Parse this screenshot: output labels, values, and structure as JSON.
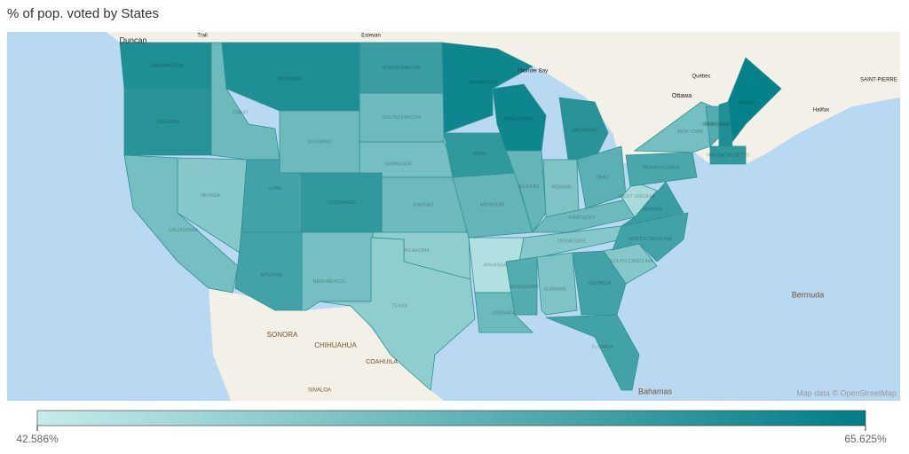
{
  "title": "% of pop. voted by States",
  "map": {
    "regions": [
      {
        "name": "WASHINGTON",
        "value": 62
      },
      {
        "name": "OREGON",
        "value": 61
      },
      {
        "name": "CALIFORNIA",
        "value": 52
      },
      {
        "name": "NEVADA",
        "value": 50
      },
      {
        "name": "IDAHO",
        "value": 53
      },
      {
        "name": "MONTANA",
        "value": 62
      },
      {
        "name": "WYOMING",
        "value": 53
      },
      {
        "name": "UTAH",
        "value": 58
      },
      {
        "name": "COLORADO",
        "value": 60
      },
      {
        "name": "ARIZONA",
        "value": 58
      },
      {
        "name": "NEW MEXICO",
        "value": 52
      },
      {
        "name": "NORTH DAKOTA",
        "value": 59
      },
      {
        "name": "SOUTH DAKOTA",
        "value": 53
      },
      {
        "name": "NEBRASKA",
        "value": 52
      },
      {
        "name": "KANSAS",
        "value": 53
      },
      {
        "name": "OKLAHOMA",
        "value": 49
      },
      {
        "name": "TEXAS",
        "value": 49
      },
      {
        "name": "MINNESOTA",
        "value": 64
      },
      {
        "name": "IOWA",
        "value": 60
      },
      {
        "name": "MISSOURI",
        "value": 54
      },
      {
        "name": "ARKANSAS",
        "value": 45
      },
      {
        "name": "LOUISIANA",
        "value": 53
      },
      {
        "name": "WISCONSIN",
        "value": 64
      },
      {
        "name": "ILLINOIS",
        "value": 54
      },
      {
        "name": "MICHIGAN",
        "value": 61
      },
      {
        "name": "INDIANA",
        "value": 51
      },
      {
        "name": "OHIO",
        "value": 55
      },
      {
        "name": "KENTUCKY",
        "value": 53
      },
      {
        "name": "TENNESSEE",
        "value": 50
      },
      {
        "name": "MISSISSIPPI",
        "value": 56
      },
      {
        "name": "ALABAMA",
        "value": 51
      },
      {
        "name": "GEORGIA",
        "value": 58
      },
      {
        "name": "FLORIDA",
        "value": 58
      },
      {
        "name": "SOUTH CAROLINA",
        "value": 50
      },
      {
        "name": "NORTH CAROLINA",
        "value": 58
      },
      {
        "name": "VIRGINIA",
        "value": 59
      },
      {
        "name": "WEST VIRGINIA",
        "value": 46
      },
      {
        "name": "PENNSYLVANIA",
        "value": 57
      },
      {
        "name": "NEW YORK",
        "value": 52
      },
      {
        "name": "VERMONT",
        "value": 56
      },
      {
        "name": "NEW HAMPSHIRE",
        "value": 62
      },
      {
        "name": "MAINE",
        "value": 65
      },
      {
        "name": "MASSACHUSETTS",
        "value": 60
      }
    ],
    "places": [
      "Duncan",
      "Trail",
      "Estevan",
      "Thunder Bay",
      "Ottawa",
      "Québec",
      "Halifax",
      "SAINT-PIERRE",
      "Bermuda",
      "Bahamas",
      "SONORA",
      "CHIHUAHUA",
      "COAHUILA",
      "SINALOA"
    ],
    "attribution": "Map data © OpenStreetMap"
  },
  "legend": {
    "min": {
      "value": 42.586,
      "label": "42.586%"
    },
    "max": {
      "value": 65.625,
      "label": "65.625%"
    },
    "color_min": "#c6ebea",
    "color_max": "#007e86"
  }
}
